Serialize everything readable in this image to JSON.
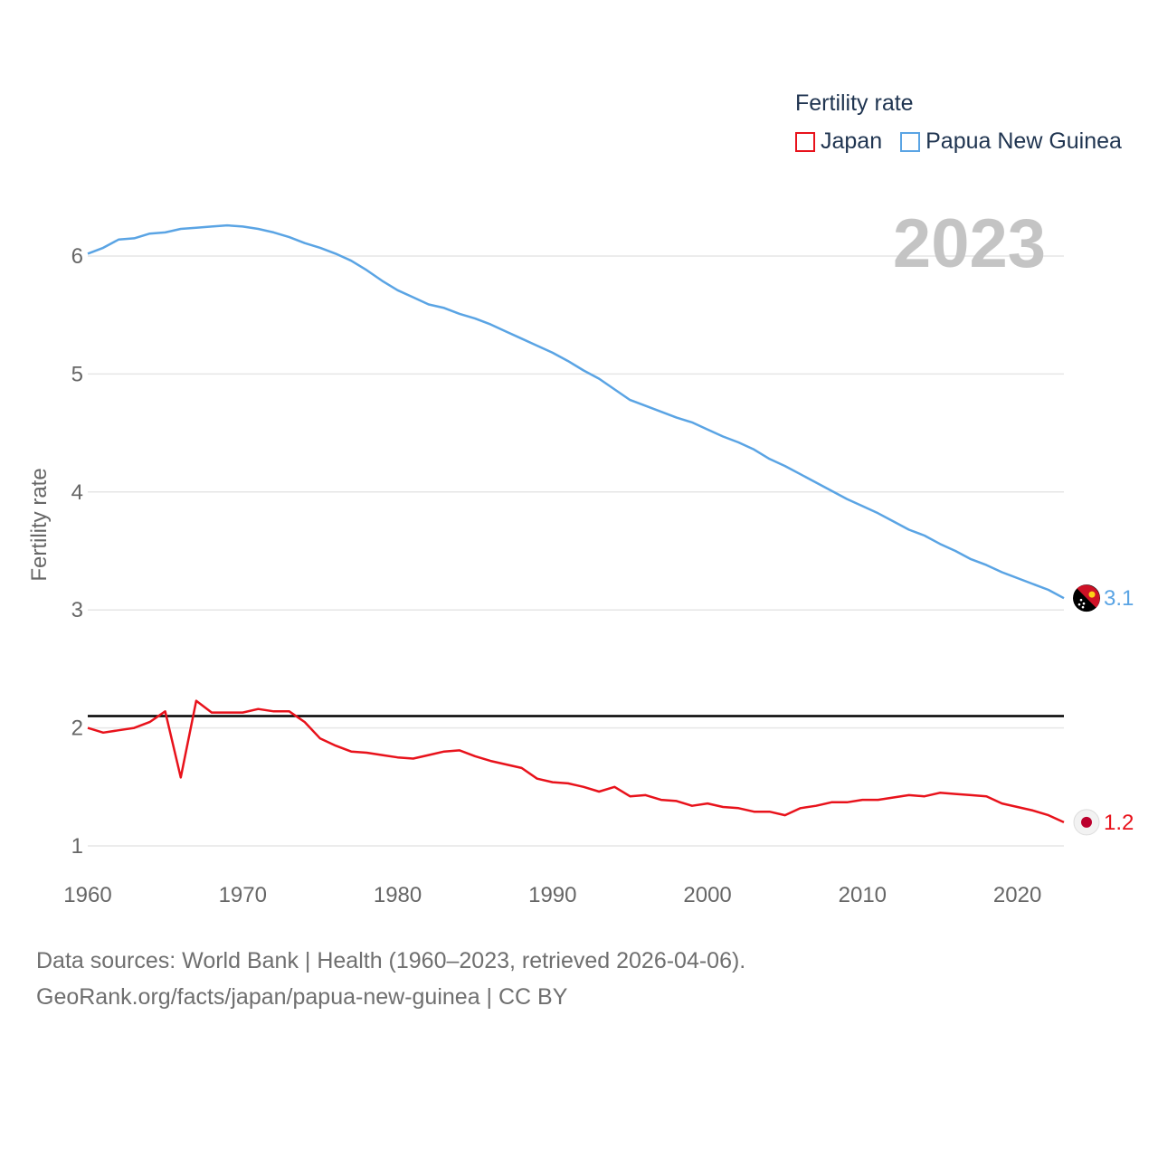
{
  "legend": {
    "title": "Fertility rate",
    "items": [
      {
        "label": "Japan",
        "color": "#e8121b"
      },
      {
        "label": "Papua New Guinea",
        "color": "#5aa4e4"
      }
    ]
  },
  "year_label": "2023",
  "footer": {
    "line1": "Data sources: World Bank | Health (1960–2023, retrieved 2026-04-06).",
    "line2": "GeoRank.org/facts/japan/papua-new-guinea | CC BY"
  },
  "chart_data": {
    "type": "line",
    "title": "Fertility rate",
    "xlabel": "",
    "ylabel": "Fertility rate",
    "xlim": [
      1960,
      2023
    ],
    "ylim": [
      1,
      6.5
    ],
    "x_ticks": [
      1960,
      1970,
      1980,
      1990,
      2000,
      2010,
      2020
    ],
    "y_ticks": [
      1,
      2,
      3,
      4,
      5,
      6
    ],
    "reference_line": {
      "value": 2.1,
      "color": "#000000"
    },
    "x": [
      1960,
      1961,
      1962,
      1963,
      1964,
      1965,
      1966,
      1967,
      1968,
      1969,
      1970,
      1971,
      1972,
      1973,
      1974,
      1975,
      1976,
      1977,
      1978,
      1979,
      1980,
      1981,
      1982,
      1983,
      1984,
      1985,
      1986,
      1987,
      1988,
      1989,
      1990,
      1991,
      1992,
      1993,
      1994,
      1995,
      1996,
      1997,
      1998,
      1999,
      2000,
      2001,
      2002,
      2003,
      2004,
      2005,
      2006,
      2007,
      2008,
      2009,
      2010,
      2011,
      2012,
      2013,
      2014,
      2015,
      2016,
      2017,
      2018,
      2019,
      2020,
      2021,
      2022,
      2023
    ],
    "series": [
      {
        "name": "Japan",
        "color": "#e8121b",
        "end_label": "1.2",
        "values": [
          2.0,
          1.96,
          1.98,
          2.0,
          2.05,
          2.14,
          1.58,
          2.23,
          2.13,
          2.13,
          2.13,
          2.16,
          2.14,
          2.14,
          2.05,
          1.91,
          1.85,
          1.8,
          1.79,
          1.77,
          1.75,
          1.74,
          1.77,
          1.8,
          1.81,
          1.76,
          1.72,
          1.69,
          1.66,
          1.57,
          1.54,
          1.53,
          1.5,
          1.46,
          1.5,
          1.42,
          1.43,
          1.39,
          1.38,
          1.34,
          1.36,
          1.33,
          1.32,
          1.29,
          1.29,
          1.26,
          1.32,
          1.34,
          1.37,
          1.37,
          1.39,
          1.39,
          1.41,
          1.43,
          1.42,
          1.45,
          1.44,
          1.43,
          1.42,
          1.36,
          1.33,
          1.3,
          1.26,
          1.2
        ]
      },
      {
        "name": "Papua New Guinea",
        "color": "#5aa4e4",
        "end_label": "3.1",
        "values": [
          6.02,
          6.07,
          6.14,
          6.15,
          6.19,
          6.2,
          6.23,
          6.24,
          6.25,
          6.26,
          6.25,
          6.23,
          6.2,
          6.16,
          6.11,
          6.07,
          6.02,
          5.96,
          5.88,
          5.79,
          5.71,
          5.65,
          5.59,
          5.56,
          5.51,
          5.47,
          5.42,
          5.36,
          5.3,
          5.24,
          5.18,
          5.11,
          5.03,
          4.96,
          4.87,
          4.78,
          4.73,
          4.68,
          4.63,
          4.59,
          4.53,
          4.47,
          4.42,
          4.36,
          4.28,
          4.22,
          4.15,
          4.08,
          4.01,
          3.94,
          3.88,
          3.82,
          3.75,
          3.68,
          3.63,
          3.56,
          3.5,
          3.43,
          3.38,
          3.32,
          3.27,
          3.22,
          3.17,
          3.1
        ]
      }
    ]
  }
}
